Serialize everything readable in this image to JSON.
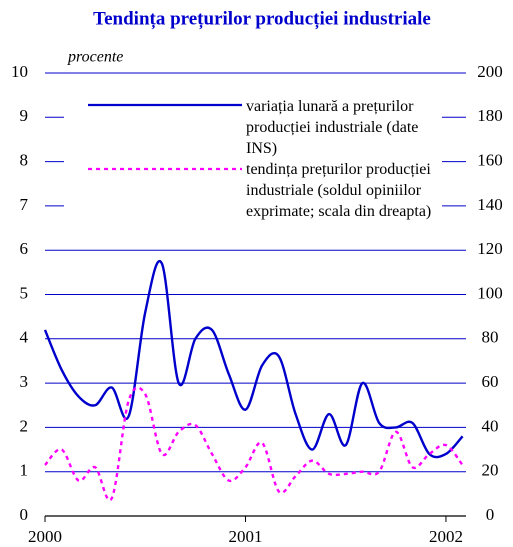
{
  "chart_data": {
    "type": "line",
    "title": "Tendința prețurilor producției industriale",
    "y_label": "procente",
    "x": [
      2000,
      2000.083,
      2000.167,
      2000.25,
      2000.333,
      2000.417,
      2000.5,
      2000.583,
      2000.667,
      2000.75,
      2000.833,
      2000.917,
      2001,
      2001.083,
      2001.167,
      2001.25,
      2001.333,
      2001.417,
      2001.5,
      2001.583,
      2001.667,
      2001.75,
      2001.833,
      2001.917,
      2002,
      2002.083
    ],
    "xlim": [
      2000,
      2002.1
    ],
    "xticks": [
      2000,
      2001,
      2002
    ],
    "ylim": [
      0,
      10
    ],
    "yticks": [
      0,
      1,
      2,
      3,
      4,
      5,
      6,
      7,
      8,
      9,
      10
    ],
    "y2lim": [
      0,
      200
    ],
    "y2ticks": [
      0,
      20,
      40,
      60,
      80,
      100,
      120,
      140,
      160,
      180,
      200
    ],
    "grid": true,
    "series": [
      {
        "name": "variația lunară a prețurilor producției industriale (date INS)",
        "color": "#0000cc",
        "dash": "solid",
        "values": [
          4.2,
          3.3,
          2.7,
          2.5,
          2.9,
          2.25,
          4.6,
          5.7,
          3.0,
          4.0,
          4.2,
          3.2,
          2.4,
          3.4,
          3.6,
          2.3,
          1.5,
          2.3,
          1.6,
          3.0,
          2.1,
          2.0,
          2.1,
          1.4,
          1.4,
          1.8
        ]
      },
      {
        "name": "tendința prețurilor producției industriale (soldul opiniilor exprimate; scala din dreapta)",
        "color": "#ff00ff",
        "dash": "dotted",
        "axis": "y2",
        "values": [
          23,
          30,
          16,
          22,
          8,
          52,
          55,
          28,
          38,
          41,
          28,
          16,
          22,
          33,
          11,
          18,
          25,
          19,
          19,
          20,
          20,
          38,
          22,
          28,
          32,
          23
        ]
      }
    ]
  }
}
